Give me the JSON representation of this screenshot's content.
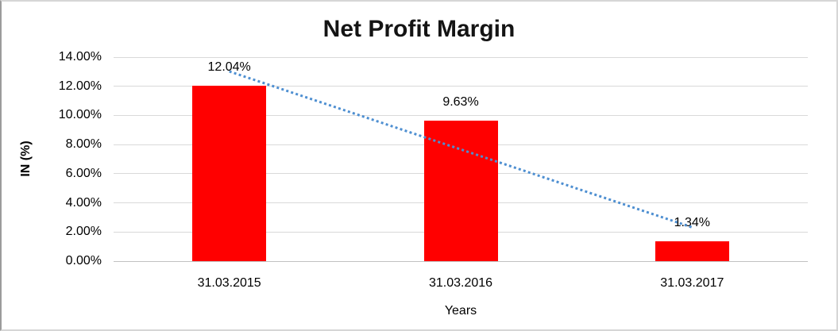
{
  "window": {
    "background": "#ffffff",
    "border_color": "#d6d6d6"
  },
  "chart_data": {
    "type": "bar",
    "title": "Net Profit Margin",
    "categories": [
      "31.03.2015",
      "31.03.2016",
      "31.03.2017"
    ],
    "values": [
      12.04,
      9.63,
      1.34
    ],
    "data_labels": [
      "12.04%",
      "9.63%",
      "1.34%"
    ],
    "xlabel": "Years",
    "ylabel": "IN (%)",
    "ylim": [
      0,
      14
    ],
    "yticks": [
      0,
      2,
      4,
      6,
      8,
      10,
      12,
      14
    ],
    "ytick_labels": [
      "0.00%",
      "2.00%",
      "4.00%",
      "6.00%",
      "8.00%",
      "10.00%",
      "12.00%",
      "14.00%"
    ],
    "grid": true,
    "legend": "none",
    "bar_color": "#ff0000",
    "gridline_color": "#d9d9d9",
    "axis_line_color": "#c2c2c2",
    "text_color": "#000000",
    "trendline": {
      "type": "linear",
      "style": "dotted",
      "color": "#4e8fd1",
      "fit_start_value": 13.02,
      "fit_end_value": 2.32
    }
  }
}
